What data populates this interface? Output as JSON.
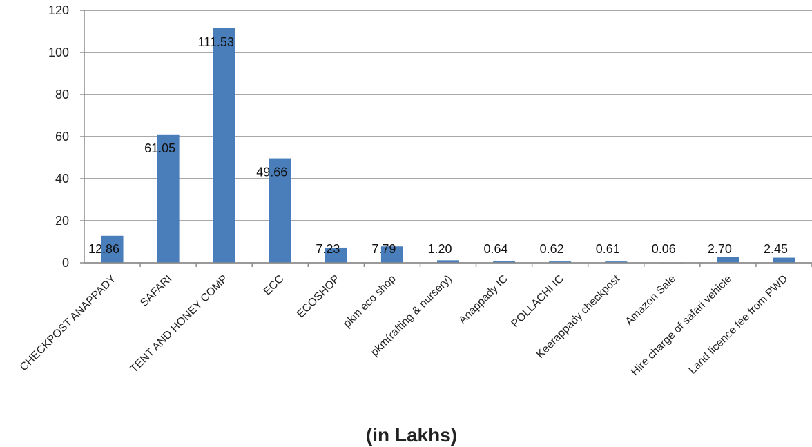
{
  "chart_data": {
    "type": "bar",
    "title": "",
    "xlabel": "(in Lakhs)",
    "ylabel": "",
    "ylim": [
      0,
      120
    ],
    "yticks": [
      0,
      20,
      40,
      60,
      80,
      100,
      120
    ],
    "grid": true,
    "bar_color": "#4a7ebb",
    "categories": [
      "CHECKPOST ANAPPADY",
      "SAFARI",
      "TENT AND HONEY COMP",
      "ECC",
      "ECOSHOP",
      "pkm eco shop",
      "pkm(rafting & nursery)",
      "Anappady IC",
      "POLLACHI IC",
      "Keerappady checkpost",
      "Amazon Sale",
      "Hire charge of safari vehicle",
      "Land licence fee from PWD"
    ],
    "values": [
      12.86,
      61.05,
      111.53,
      49.66,
      7.23,
      7.79,
      1.2,
      0.64,
      0.62,
      0.61,
      0.06,
      2.7,
      2.45
    ],
    "value_labels": [
      "12.86",
      "61.05",
      "111.53",
      "49.66",
      "7.23",
      "7.79",
      "1.20",
      "0.64",
      "0.62",
      "0.61",
      "0.06",
      "2.70",
      "2.45"
    ]
  }
}
